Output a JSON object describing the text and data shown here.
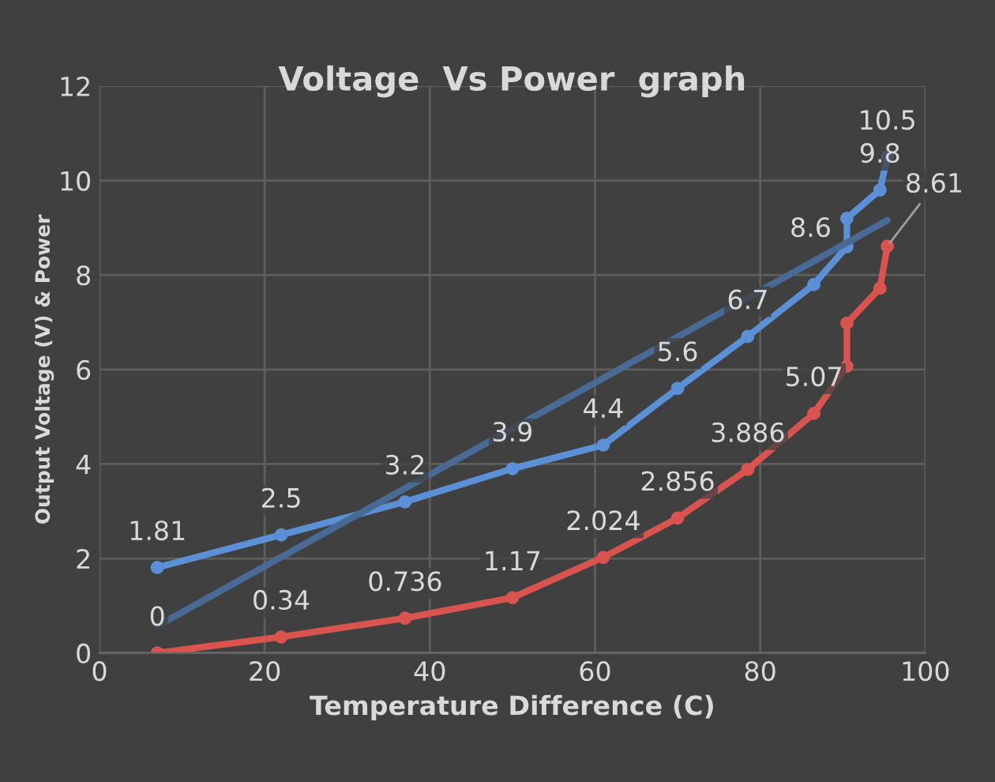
{
  "chart_data": {
    "type": "line",
    "title": "Voltage  Vs Power  graph",
    "xlabel": "Temperature Difference (C)",
    "ylabel": "Output Voltage (V) & Power",
    "xlim": [
      0,
      100
    ],
    "xticks": [
      0,
      20,
      40,
      60,
      80,
      100
    ],
    "ylim": [
      0,
      12
    ],
    "yticks": [
      0,
      2,
      4,
      6,
      8,
      10,
      12
    ],
    "grid": true,
    "marker": "circle",
    "line_style": "solid",
    "series": [
      {
        "color": "#5b8fd6",
        "x": [
          7,
          22,
          37,
          50,
          61,
          70,
          78.5,
          86.5,
          90.5,
          90.5,
          94.5,
          95.4
        ],
        "values": [
          1.81,
          2.5,
          3.2,
          3.9,
          4.4,
          5.6,
          6.7,
          7.8,
          8.6,
          9.2,
          9.8,
          10.5
        ],
        "value_labels": [
          "1.81",
          "2.5",
          "3.2",
          "3.9",
          "4.4",
          "5.6",
          "6.7",
          null,
          "8.6",
          null,
          "9.8",
          "10.5"
        ]
      },
      {
        "color": "#d9534f",
        "x": [
          7,
          22,
          37,
          50,
          61,
          70,
          78.5,
          86.5,
          90.5,
          90.5,
          94.5,
          95.4
        ],
        "values": [
          0,
          0.34,
          0.736,
          1.17,
          2.024,
          2.856,
          3.886,
          5.07,
          6.07,
          6.98,
          7.72,
          8.61
        ],
        "value_labels": [
          "0",
          "0.34",
          "0.736",
          "1.17",
          "2.024",
          "2.856",
          "3.886",
          "5.07",
          null,
          null,
          null,
          "8.61"
        ]
      },
      {
        "color": "#4a6a96",
        "marker": "none",
        "x": [
          7,
          95.4
        ],
        "values": [
          0.57,
          9.16
        ]
      }
    ]
  }
}
